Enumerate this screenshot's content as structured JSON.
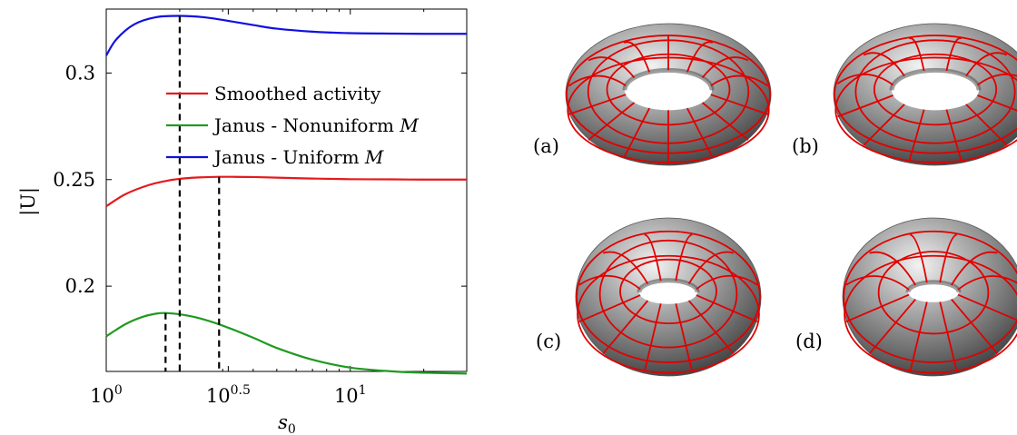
{
  "chart_data": {
    "type": "line",
    "xlabel": "s0",
    "ylabel": "|U|",
    "x_scale": "log",
    "xlim": [
      1,
      30
    ],
    "ylim": [
      0.16,
      0.33
    ],
    "x_ticks": [
      {
        "value": 1,
        "base": "10",
        "exp": "0"
      },
      {
        "value": 3.1623,
        "base": "10",
        "exp": "0.5"
      },
      {
        "value": 10,
        "base": "10",
        "exp": "1"
      }
    ],
    "y_ticks": [
      {
        "value": 0.2,
        "label": "0.2"
      },
      {
        "value": 0.25,
        "label": "0.25"
      },
      {
        "value": 0.3,
        "label": "0.3"
      }
    ],
    "grid": false,
    "legend_position": "upper-right",
    "series": [
      {
        "name": "Smoothed activity",
        "color": "#e41a1c",
        "x": [
          1,
          1.2,
          1.5,
          1.8,
          2.1,
          2.5,
          2.9,
          3.3,
          4,
          5,
          7,
          10,
          15,
          20,
          30
        ],
        "y": [
          0.2375,
          0.2432,
          0.2475,
          0.2496,
          0.2506,
          0.2511,
          0.2513,
          0.2513,
          0.2512,
          0.2509,
          0.2505,
          0.2502,
          0.2501,
          0.25,
          0.25
        ]
      },
      {
        "name": "Janus - Nonuniform M",
        "color": "#1f9a1f",
        "x": [
          1,
          1.2,
          1.4,
          1.6,
          1.75,
          2,
          2.4,
          3,
          4,
          5,
          7,
          10,
          15,
          20,
          30
        ],
        "y": [
          0.1765,
          0.1822,
          0.1855,
          0.1871,
          0.1874,
          0.1868,
          0.185,
          0.1815,
          0.1758,
          0.171,
          0.1655,
          0.1618,
          0.16,
          0.1594,
          0.159
        ]
      },
      {
        "name": "Janus - Uniform M",
        "color": "#1010e0",
        "x": [
          1,
          1.1,
          1.3,
          1.6,
          2,
          2.5,
          3,
          4,
          5,
          7,
          10,
          15,
          20,
          30
        ],
        "y": [
          0.3082,
          0.3158,
          0.3228,
          0.3262,
          0.3268,
          0.3262,
          0.3249,
          0.3225,
          0.3208,
          0.3194,
          0.3187,
          0.3185,
          0.3184,
          0.3184
        ]
      }
    ],
    "dashed_markers": [
      {
        "x": 1.75,
        "y": 0.1874
      },
      {
        "x": 2.0,
        "y": 0.3268
      },
      {
        "x": 2.9,
        "y": 0.2513
      }
    ]
  },
  "panels": [
    {
      "label": "(a)",
      "meridians": 14,
      "parallels": 3
    },
    {
      "label": "(b)",
      "meridians": 12,
      "parallels": 3
    },
    {
      "label": "(c)",
      "meridians": 12,
      "parallels": 3
    },
    {
      "label": "(d)",
      "meridians": 12,
      "parallels": 2
    }
  ],
  "colors": {
    "torus_grid": "#e00000",
    "torus_body": "#8c8c8c"
  }
}
